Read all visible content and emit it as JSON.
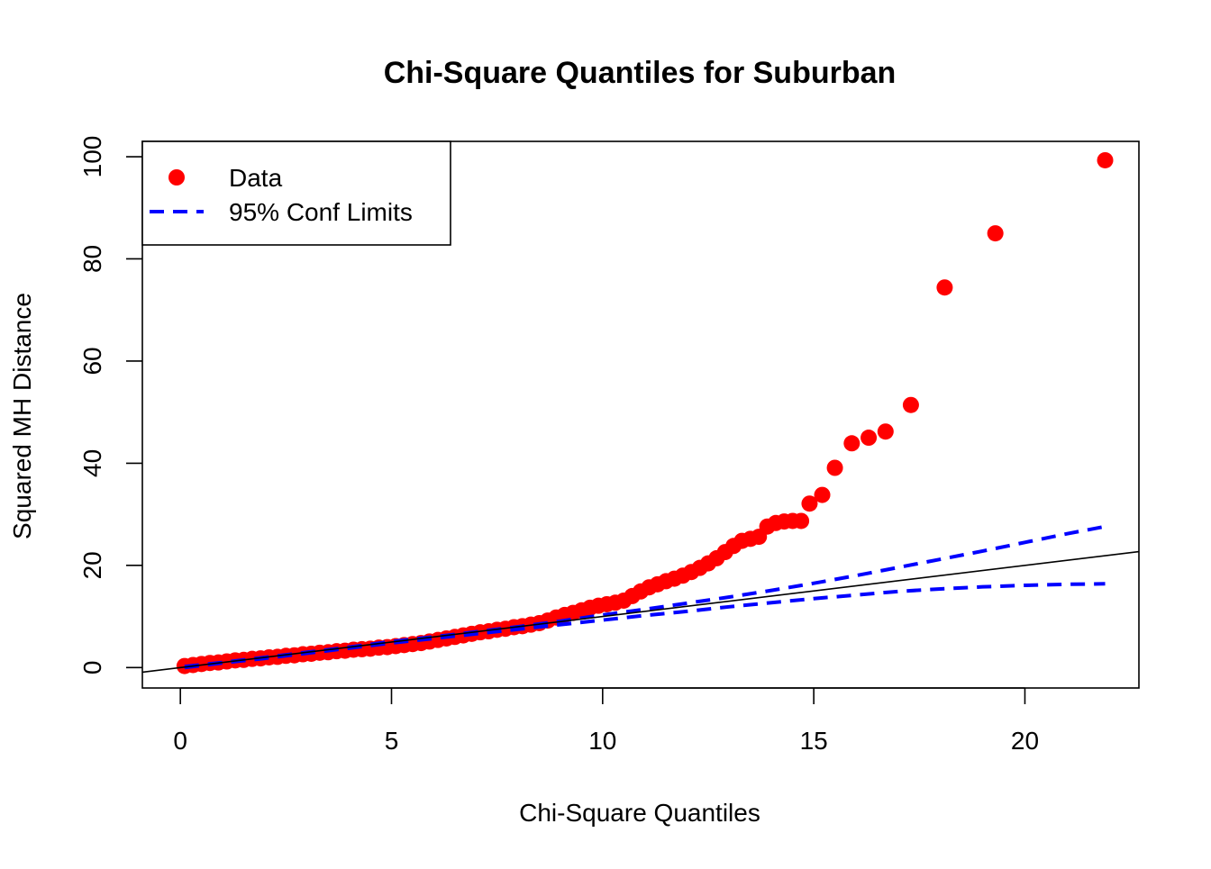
{
  "chart_data": {
    "type": "scatter",
    "title": "Chi-Square Quantiles for Suburban",
    "xlabel": "Chi-Square Quantiles",
    "ylabel": "Squared MH Distance",
    "xlim": [
      -0.9,
      22.7
    ],
    "ylim": [
      -4,
      103
    ],
    "xticks": [
      0,
      5,
      10,
      15,
      20
    ],
    "yticks": [
      0,
      20,
      40,
      60,
      80,
      100
    ],
    "grid": false,
    "legend": {
      "position": "top-left",
      "items": [
        {
          "label": "Data",
          "style": "point",
          "color": "#ff0000"
        },
        {
          "label": "95% Conf Limits",
          "style": "dashed-line",
          "color": "#0000ff"
        }
      ]
    },
    "colors": {
      "data": "#ff0000",
      "conf_limits": "#0000ff",
      "reference_line": "#000000"
    },
    "series": [
      {
        "name": "Data",
        "kind": "points",
        "x": [
          0.1,
          0.3,
          0.5,
          0.7,
          0.9,
          1.1,
          1.3,
          1.5,
          1.7,
          1.9,
          2.1,
          2.3,
          2.5,
          2.7,
          2.9,
          3.1,
          3.3,
          3.5,
          3.7,
          3.9,
          4.1,
          4.3,
          4.5,
          4.7,
          4.9,
          5.1,
          5.3,
          5.5,
          5.7,
          5.9,
          6.1,
          6.3,
          6.5,
          6.7,
          6.9,
          7.1,
          7.3,
          7.5,
          7.7,
          7.9,
          8.1,
          8.3,
          8.5,
          8.7,
          8.9,
          9.1,
          9.3,
          9.5,
          9.7,
          9.9,
          10.1,
          10.3,
          10.5,
          10.7,
          10.9,
          11.1,
          11.3,
          11.5,
          11.7,
          11.9,
          12.1,
          12.3,
          12.5,
          12.7,
          12.9,
          13.1,
          13.3,
          13.5,
          13.7,
          13.9,
          14.1,
          14.3,
          14.5,
          14.7,
          14.9,
          15.2,
          15.5,
          15.9,
          16.3,
          16.7,
          17.3,
          18.1,
          19.3,
          21.9
        ],
        "y": [
          0.3,
          0.5,
          0.7,
          0.9,
          1.0,
          1.2,
          1.4,
          1.5,
          1.7,
          1.8,
          2.0,
          2.1,
          2.3,
          2.4,
          2.6,
          2.7,
          2.9,
          3.0,
          3.2,
          3.3,
          3.5,
          3.6,
          3.7,
          3.9,
          4.0,
          4.2,
          4.4,
          4.6,
          4.8,
          5.1,
          5.4,
          5.7,
          6.0,
          6.3,
          6.6,
          6.9,
          7.1,
          7.4,
          7.6,
          7.9,
          8.1,
          8.4,
          8.7,
          9.2,
          9.8,
          10.3,
          10.7,
          11.2,
          11.7,
          12.1,
          12.4,
          12.7,
          13.1,
          14.0,
          14.9,
          15.7,
          16.3,
          16.9,
          17.4,
          18.0,
          18.7,
          19.5,
          20.4,
          21.4,
          22.6,
          23.8,
          24.8,
          25.2,
          25.6,
          27.6,
          28.3,
          28.6,
          28.7,
          28.7,
          32.1,
          33.8,
          39.1,
          43.9,
          45.0,
          46.2,
          51.4,
          74.4,
          85.0,
          99.3
        ]
      },
      {
        "name": "95% Conf Limits",
        "kind": "dashed-line",
        "x": [
          0.1,
          1,
          2,
          3,
          4,
          5,
          6,
          7,
          8,
          9,
          10,
          11,
          12,
          13,
          14,
          15,
          16,
          17,
          18,
          19,
          20,
          21,
          21.9
        ],
        "y": [
          0.2,
          1.0,
          2.0,
          3.0,
          4.0,
          5.1,
          6.0,
          7.0,
          8.0,
          9.1,
          10.3,
          11.4,
          12.6,
          13.8,
          15.1,
          16.5,
          18.0,
          19.6,
          21.2,
          22.8,
          24.5,
          26.2,
          27.6
        ]
      },
      {
        "name": "95% Conf Limits",
        "kind": "dashed-line",
        "x": [
          0.1,
          1,
          2,
          3,
          4,
          5,
          6,
          7,
          8,
          9,
          10,
          11,
          12,
          13,
          14,
          15,
          16,
          17,
          18,
          19,
          20,
          21,
          21.9
        ],
        "y": [
          0.0,
          0.9,
          1.8,
          2.8,
          3.8,
          4.8,
          5.7,
          6.6,
          7.5,
          8.4,
          9.3,
          10.2,
          11.0,
          11.9,
          12.7,
          13.5,
          14.2,
          14.9,
          15.4,
          15.8,
          16.1,
          16.3,
          16.4
        ]
      },
      {
        "kind": "reference-line",
        "x": [
          -0.9,
          22.7
        ],
        "y": [
          -0.9,
          22.7
        ]
      }
    ]
  }
}
